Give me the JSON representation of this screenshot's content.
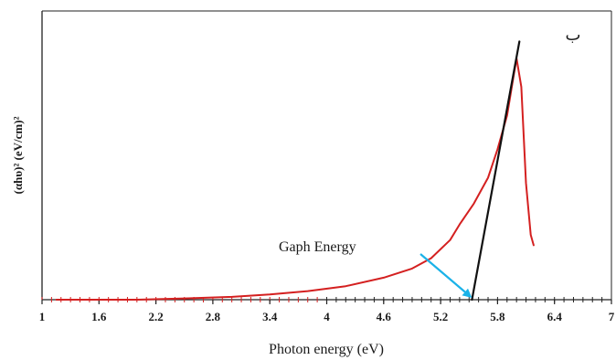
{
  "chart_data": {
    "type": "line",
    "title": "",
    "panel_label": "ب",
    "xlabel": "Photon energy (eV)",
    "ylabel": "(αhυ)² (eV/cm)²",
    "xlim": [
      1,
      7
    ],
    "ylim": [
      0,
      1
    ],
    "x_ticks": [
      "1",
      "1.6",
      "2.2",
      "2.8",
      "3.4",
      "4",
      "4.6",
      "5.2",
      "5.8",
      "6.4",
      "7"
    ],
    "y_ticks_shown": false,
    "grid": false,
    "series": [
      {
        "color": "#d42020",
        "x": [
          1.15,
          2.0,
          2.5,
          3.0,
          3.4,
          3.8,
          4.2,
          4.6,
          4.9,
          5.1,
          5.3,
          5.4,
          5.55,
          5.7,
          5.8,
          5.9,
          5.95,
          6.0,
          6.05,
          6.1,
          6.15,
          6.18
        ],
        "y": [
          0.0,
          0.0,
          0.005,
          0.011,
          0.02,
          0.033,
          0.052,
          0.085,
          0.12,
          0.16,
          0.23,
          0.29,
          0.37,
          0.47,
          0.58,
          0.71,
          0.82,
          0.93,
          0.82,
          0.45,
          0.25,
          0.21
        ]
      },
      {
        "color": "#111111",
        "x": [
          5.53,
          6.03
        ],
        "y": [
          0.0,
          0.995
        ]
      }
    ],
    "annotations": [
      {
        "text": "Gaph Energy",
        "arrow_to_x": 5.53,
        "arrow_color": "#1ab2e8"
      }
    ]
  }
}
